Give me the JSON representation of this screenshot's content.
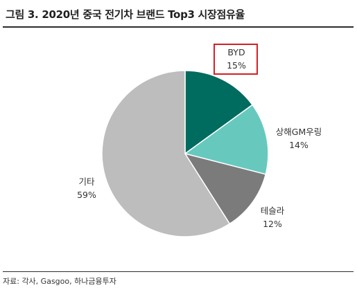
{
  "title": "그림 3. 2020년 중국 전기차 브랜드 Top3 시장점유율",
  "source": "자료: 각사, Gasgoo, 하나금융투자",
  "chart_data": {
    "type": "pie",
    "title": "그림 3. 2020년 중국 전기차 브랜드 Top3 시장점유율",
    "slices": [
      {
        "name": "BYD",
        "value": 15,
        "label": "15%",
        "color": "#006B5F"
      },
      {
        "name": "상해GM우링",
        "value": 14,
        "label": "14%",
        "color": "#67C9BD"
      },
      {
        "name": "테슬라",
        "value": 12,
        "label": "12%",
        "color": "#7B7B7B"
      },
      {
        "name": "기타",
        "value": 59,
        "label": "59%",
        "color": "#BDBDBD"
      }
    ],
    "start": "12 o'clock",
    "direction": "clockwise",
    "highlighted": "BYD",
    "highlight_color": "#D21F26"
  }
}
